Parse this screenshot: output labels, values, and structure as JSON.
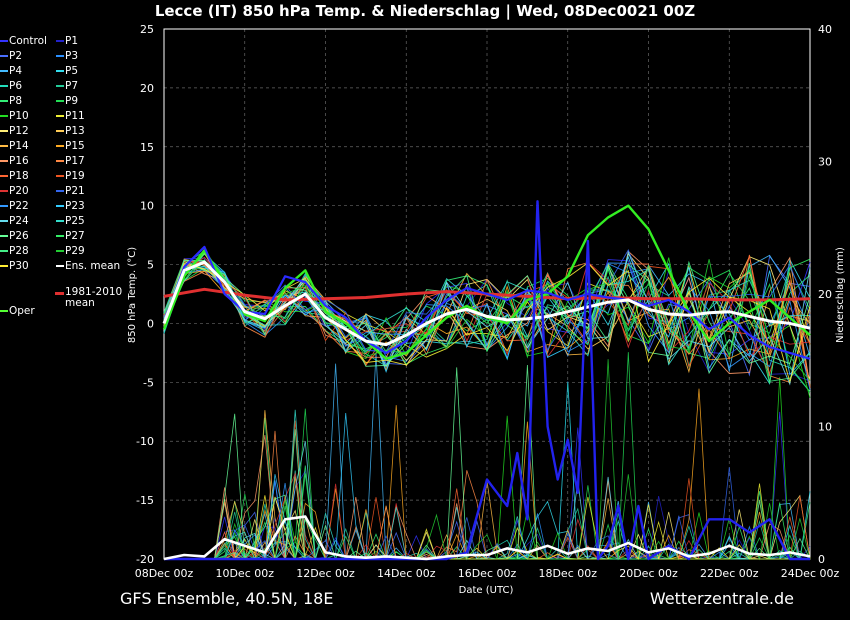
{
  "title": "Lecce  (IT)  850 hPa Temp. & Niederschlag | Wed, 08Dec0021 00Z",
  "footer": {
    "left": "GFS Ensemble, 40.5N, 18E",
    "right": "Wetterzentrale.de"
  },
  "chart_data": {
    "type": "line",
    "title": "Lecce  (IT)  850 hPa Temp. & Niederschlag | Wed, 08Dec0021 00Z",
    "xlabel": "Date (UTC)",
    "ylabel_left": "850 hPa Temp. (°C)",
    "ylabel_right": "Niederschlag (mm)",
    "x_ticks": [
      "08Dec 00z",
      "10Dec 00z",
      "12Dec 00z",
      "14Dec 00z",
      "16Dec 00z",
      "18Dec 00z",
      "20Dec 00z",
      "22Dec 00z",
      "24Dec 00z"
    ],
    "y_left_ticks": [
      25,
      20,
      15,
      10,
      5,
      0,
      -5,
      -10,
      -15,
      -20
    ],
    "y_right_ticks": [
      40,
      30,
      20,
      10,
      0
    ],
    "ylim_left": [
      -20,
      25
    ],
    "ylim_right": [
      0,
      40
    ],
    "x_range_hours": [
      0,
      384
    ],
    "grid": true,
    "legend": [
      {
        "name": "Control",
        "color": "#3333ff"
      },
      {
        "name": "P1",
        "color": "#2222cc"
      },
      {
        "name": "P2",
        "color": "#4a6fff"
      },
      {
        "name": "P3",
        "color": "#2a8fff"
      },
      {
        "name": "P4",
        "color": "#44bbff"
      },
      {
        "name": "P5",
        "color": "#33ddee"
      },
      {
        "name": "P6",
        "color": "#22ddbb"
      },
      {
        "name": "P7",
        "color": "#22cc99"
      },
      {
        "name": "P8",
        "color": "#33ee77"
      },
      {
        "name": "P9",
        "color": "#22dd55"
      },
      {
        "name": "P10",
        "color": "#22dd22"
      },
      {
        "name": "P11",
        "color": "#eeee33"
      },
      {
        "name": "P12",
        "color": "#ffee77"
      },
      {
        "name": "P13",
        "color": "#ffcc55"
      },
      {
        "name": "P14",
        "color": "#ffbb44"
      },
      {
        "name": "P15",
        "color": "#ffaa22"
      },
      {
        "name": "P16",
        "color": "#ff9966"
      },
      {
        "name": "P17",
        "color": "#ff8844"
      },
      {
        "name": "P18",
        "color": "#ff6633"
      },
      {
        "name": "P19",
        "color": "#ee5522"
      },
      {
        "name": "P20",
        "color": "#dd3333"
      },
      {
        "name": "P21",
        "color": "#3366ee"
      },
      {
        "name": "P22",
        "color": "#3399ff"
      },
      {
        "name": "P23",
        "color": "#33ccff"
      },
      {
        "name": "P24",
        "color": "#66ddee"
      },
      {
        "name": "P25",
        "color": "#33ddcc"
      },
      {
        "name": "P26",
        "color": "#66ff99"
      },
      {
        "name": "P27",
        "color": "#33ee66"
      },
      {
        "name": "P28",
        "color": "#44ee88"
      },
      {
        "name": "P29",
        "color": "#22cc33"
      },
      {
        "name": "P30",
        "color": "#ffee33"
      },
      {
        "name": "Ens. mean",
        "color": "#ffffff"
      },
      {
        "name": "Oper",
        "color": "#55ff33"
      },
      {
        "name": "1981-2010\nmean",
        "color": "#e03030"
      }
    ],
    "series_highlight": {
      "ens_mean_temp": {
        "x": [
          0,
          12,
          24,
          36,
          48,
          60,
          72,
          84,
          96,
          108,
          120,
          132,
          144,
          156,
          168,
          180,
          192,
          204,
          216,
          228,
          240,
          252,
          264,
          276,
          288,
          300,
          312,
          324,
          336,
          348,
          360,
          372,
          384
        ],
        "y": [
          0,
          4.5,
          5.2,
          3.5,
          1.0,
          0.4,
          1.5,
          2.5,
          0.5,
          -0.5,
          -1.5,
          -1.8,
          -1.0,
          0.0,
          0.8,
          1.2,
          0.6,
          0.3,
          0.4,
          0.6,
          1.0,
          1.4,
          1.8,
          2.0,
          1.2,
          0.8,
          0.7,
          0.9,
          1.0,
          0.6,
          0.2,
          0.0,
          -0.4
        ]
      },
      "climate_mean_temp": {
        "x": [
          0,
          24,
          48,
          72,
          96,
          120,
          144,
          168,
          192,
          216,
          240,
          264,
          288,
          312,
          336,
          360,
          384
        ],
        "y": [
          2.3,
          2.9,
          2.4,
          2.0,
          2.1,
          2.2,
          2.5,
          2.7,
          2.5,
          2.3,
          2.1,
          2.2,
          2.1,
          2.1,
          2.0,
          2.0,
          2.1
        ]
      },
      "control_temp": {
        "x": [
          0,
          12,
          24,
          36,
          48,
          60,
          72,
          84,
          96,
          108,
          120,
          132,
          144,
          156,
          168,
          180,
          192,
          204,
          216,
          228,
          240,
          252,
          264,
          276,
          288,
          300,
          312,
          324,
          336,
          348,
          360,
          372,
          384
        ],
        "y": [
          0,
          4.8,
          6.5,
          2.5,
          1.0,
          0.8,
          4.0,
          3.5,
          1.5,
          0.5,
          -1.5,
          -2.5,
          -1.5,
          0.5,
          2.0,
          3.0,
          2.5,
          2.0,
          2.8,
          2.6,
          2.0,
          2.5,
          2.2,
          2.0,
          1.5,
          2.0,
          1.0,
          -0.5,
          0.5,
          -1.0,
          -2.0,
          -2.5,
          -3.0
        ]
      },
      "oper_temp": {
        "x": [
          0,
          12,
          24,
          36,
          48,
          60,
          72,
          84,
          96,
          108,
          120,
          132,
          144,
          156,
          168,
          180,
          192,
          204,
          216,
          228,
          240,
          252,
          264,
          276,
          288,
          300,
          312,
          324,
          336,
          348,
          360,
          372,
          384
        ],
        "y": [
          -0.5,
          4.0,
          6.2,
          3.5,
          0.8,
          0.2,
          3.0,
          4.5,
          1.0,
          0.0,
          -1.5,
          -3.0,
          -2.5,
          -1.0,
          0.5,
          1.5,
          0.5,
          0.0,
          2.0,
          2.5,
          4.0,
          7.5,
          9.0,
          10.0,
          8.0,
          4.5,
          1.0,
          -1.5,
          0.0,
          1.0,
          2.0,
          0.5,
          -1.0
        ]
      },
      "control_precip": {
        "x": [
          0,
          48,
          96,
          132,
          144,
          156,
          168,
          180,
          192,
          198,
          204,
          210,
          216,
          222,
          228,
          234,
          240,
          246,
          252,
          258,
          264,
          270,
          276,
          282,
          288,
          300,
          312,
          324,
          336,
          348,
          360,
          372,
          384
        ],
        "y": [
          0,
          0,
          0,
          0,
          0,
          0,
          0,
          0.5,
          6,
          5,
          4,
          8,
          3,
          27,
          10,
          6,
          9,
          5,
          24,
          0,
          1,
          4,
          0,
          4,
          0,
          1,
          0,
          3,
          3,
          2,
          3,
          0,
          0
        ]
      },
      "ens_mean_precip": {
        "x": [
          0,
          12,
          24,
          36,
          48,
          60,
          72,
          84,
          96,
          108,
          120,
          132,
          144,
          156,
          168,
          180,
          192,
          204,
          216,
          228,
          240,
          252,
          264,
          276,
          288,
          300,
          312,
          324,
          336,
          348,
          360,
          372,
          384
        ],
        "y": [
          0,
          0.3,
          0.2,
          1.5,
          1.0,
          0.5,
          3.0,
          3.2,
          0.5,
          0.2,
          0.1,
          0.2,
          0.1,
          0.0,
          0.2,
          0.3,
          0.3,
          0.8,
          0.5,
          1.0,
          0.4,
          0.8,
          0.6,
          1.2,
          0.5,
          0.8,
          0.2,
          0.4,
          1.0,
          0.4,
          0.3,
          0.5,
          0.2
        ]
      }
    }
  }
}
